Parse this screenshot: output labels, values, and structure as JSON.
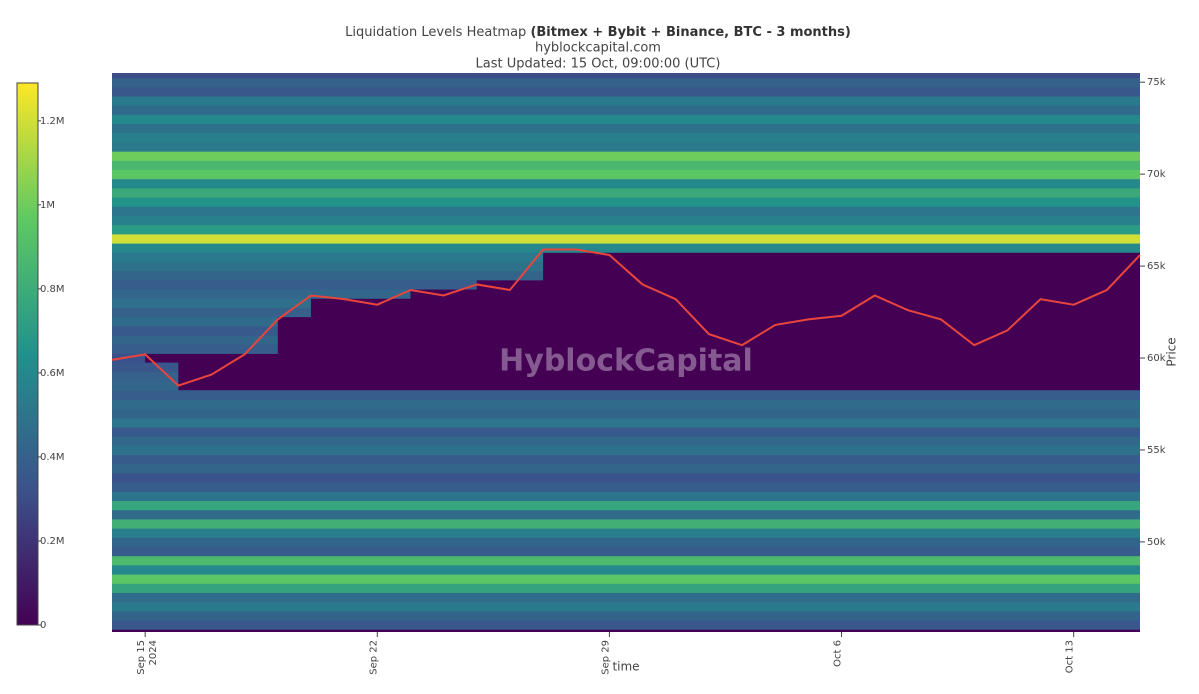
{
  "chart_data": {
    "type": "heatmap",
    "title": "Liquidation Levels Heatmap",
    "title_bold": "(Bitmex + Bybit + Binance, BTC - 3 months)",
    "subtitle": "hyblockcapital.com",
    "updated": "Last Updated: 15 Oct, 09:00:00 (UTC)",
    "watermark": "HyblockCapital",
    "xlabel": "time",
    "ylabel": "Price",
    "xlim": [
      "2024-09-14",
      "2024-10-15"
    ],
    "ylim": [
      45100,
      75500
    ],
    "xticks": [
      {
        "value": "2024-09-15",
        "label": "Sep 15",
        "sublabel": "2024"
      },
      {
        "value": "2024-09-22",
        "label": "Sep 22"
      },
      {
        "value": "2024-09-29",
        "label": "Sep 29"
      },
      {
        "value": "2024-10-06",
        "label": "Oct 6"
      },
      {
        "value": "2024-10-13",
        "label": "Oct 13"
      }
    ],
    "yticks": [
      {
        "value": 50000,
        "label": "50k"
      },
      {
        "value": 55000,
        "label": "55k"
      },
      {
        "value": 60000,
        "label": "60k"
      },
      {
        "value": 65000,
        "label": "65k"
      },
      {
        "value": 70000,
        "label": "70k"
      },
      {
        "value": 75000,
        "label": "75k"
      }
    ],
    "colorscale": [
      "#440154",
      "#3b528b",
      "#21918c",
      "#5ec962",
      "#fde725"
    ],
    "clim": [
      0,
      1290000
    ],
    "cticks": [
      {
        "value": 0,
        "label": "0"
      },
      {
        "value": 200000,
        "label": "0.2M"
      },
      {
        "value": 400000,
        "label": "0.4M"
      },
      {
        "value": 600000,
        "label": "0.6M"
      },
      {
        "value": 800000,
        "label": "0.8M"
      },
      {
        "value": 1000000,
        "label": "1M"
      },
      {
        "value": 1200000,
        "label": "1.2M"
      }
    ],
    "y": [
      45500,
      46000,
      46500,
      47000,
      47500,
      48000,
      48500,
      49000,
      49500,
      50000,
      50500,
      51000,
      51500,
      52000,
      52500,
      53000,
      53500,
      54000,
      54500,
      55000,
      55500,
      56000,
      56500,
      57000,
      57500,
      58000,
      58500,
      59000,
      59500,
      60000,
      60500,
      61000,
      61500,
      62000,
      62500,
      63000,
      63500,
      64000,
      64500,
      65000,
      65500,
      66000,
      66500,
      67000,
      67500,
      68000,
      68500,
      69000,
      69500,
      70000,
      70500,
      71000,
      71500,
      72000,
      72500,
      73000,
      73500,
      74000,
      74500,
      75000,
      75500
    ],
    "values": [
      350000,
      420000,
      520000,
      450000,
      750000,
      950000,
      600000,
      880000,
      380000,
      420000,
      550000,
      820000,
      450000,
      760000,
      500000,
      380000,
      330000,
      420000,
      370000,
      480000,
      440000,
      360000,
      500000,
      420000,
      450000,
      380000,
      430000,
      400000,
      350000,
      320000,
      380000,
      420000,
      360000,
      450000,
      400000,
      470000,
      430000,
      380000,
      420000,
      480000,
      520000,
      600000,
      1200000,
      700000,
      560000,
      500000,
      650000,
      780000,
      600000,
      950000,
      870000,
      1000000,
      520000,
      560000,
      480000,
      600000,
      450000,
      520000,
      350000,
      400000,
      300000
    ],
    "series": [
      {
        "name": "BTC",
        "color": "#e8453c",
        "x": [
          "2024-09-14",
          "2024-09-15",
          "2024-09-16",
          "2024-09-17",
          "2024-09-18",
          "2024-09-19",
          "2024-09-20",
          "2024-09-21",
          "2024-09-22",
          "2024-09-23",
          "2024-09-24",
          "2024-09-25",
          "2024-09-26",
          "2024-09-27",
          "2024-09-28",
          "2024-09-29",
          "2024-09-30",
          "2024-10-01",
          "2024-10-02",
          "2024-10-03",
          "2024-10-04",
          "2024-10-05",
          "2024-10-06",
          "2024-10-07",
          "2024-10-08",
          "2024-10-09",
          "2024-10-10",
          "2024-10-11",
          "2024-10-12",
          "2024-10-13",
          "2024-10-14",
          "2024-10-15"
        ],
        "values": [
          59900,
          60200,
          58500,
          59100,
          60200,
          62100,
          63400,
          63200,
          62900,
          63700,
          63400,
          64000,
          63700,
          65900,
          65900,
          65600,
          64000,
          63200,
          61300,
          60700,
          61800,
          62100,
          62300,
          63400,
          62600,
          62100,
          60700,
          61500,
          63200,
          62900,
          63700,
          65600
        ]
      }
    ]
  }
}
